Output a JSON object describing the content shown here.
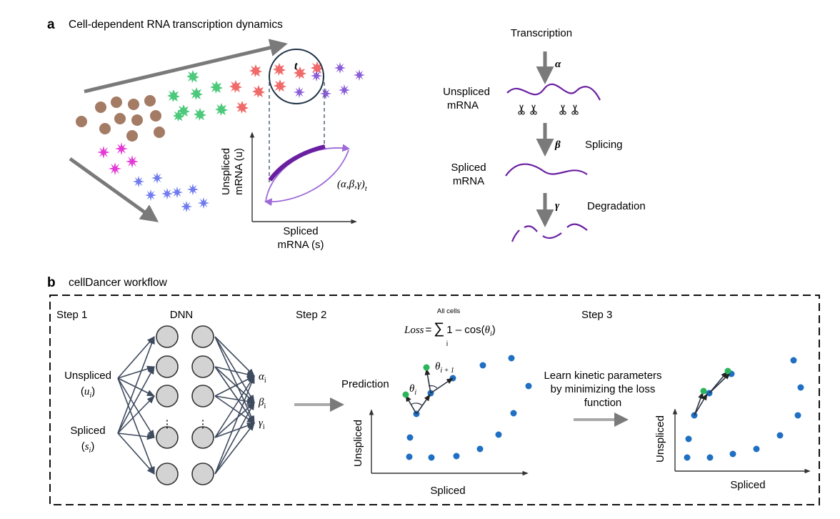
{
  "panel_a": {
    "letter": "a",
    "title": "Cell-dependent RNA transcription dynamics",
    "time_label": "t",
    "y_axis": "Unspliced\nmRNA (u)",
    "x_axis_1": "Spliced",
    "x_axis_2": "mRNA (s)",
    "params_label": "(α,β,γ)",
    "params_sub": "t",
    "transcription": "Transcription",
    "alpha": "α",
    "unspliced_1": "Unspliced",
    "unspliced_2": "mRNA",
    "beta": "β",
    "splicing": "Splicing",
    "spliced_1": "Spliced",
    "spliced_2": "mRNA",
    "gamma": "γ",
    "degradation": "Degradation",
    "colors": {
      "brown": "#a47b64",
      "green": "#4cc97a",
      "red": "#f06a6a",
      "purple": "#8a5cd6",
      "magenta": "#e33ad6",
      "blue": "#6f7bef",
      "mrna": "#6a1fa0",
      "arrow": "#7a7a7a"
    }
  },
  "panel_b": {
    "letter": "b",
    "title": "cellDancer workflow",
    "step1": "Step 1",
    "dnn": "DNN",
    "unspliced": "Unspliced",
    "u_open": "(",
    "u_var": "u",
    "u_sub": "i",
    "u_close": ")",
    "spliced": "Spliced",
    "s_open": "(",
    "s_var": "s",
    "s_sub": "i",
    "s_close": ")",
    "out_alpha": "α",
    "out_beta": "β",
    "out_gamma": "γ",
    "out_sub": "i",
    "ellipsis": "⋮",
    "step2": "Step 2",
    "loss_name": "Loss",
    "loss_eq": "=",
    "loss_sigma": "∑",
    "loss_top": "All cells",
    "loss_bottom": "i",
    "loss_expr": "1 – cos(",
    "loss_theta": "θ",
    "loss_close": ")",
    "prediction": "Prediction",
    "theta_i": "θ",
    "theta_i_sub": "i",
    "theta_i1": "θ",
    "theta_i1_sub": "i + 1",
    "step2_y": "Unspliced",
    "step2_x": "Spliced",
    "step3": "Step 3",
    "learn_1": "Learn kinetic parameters",
    "learn_2": "by minimizing the loss",
    "learn_3": "function",
    "step3_y": "Unspliced",
    "step3_x": "Spliced",
    "colors": {
      "dot": "#1f6fc2",
      "pred": "#2bb55a",
      "node": "#d3d3d3",
      "edge": "#3e4a5e"
    }
  }
}
